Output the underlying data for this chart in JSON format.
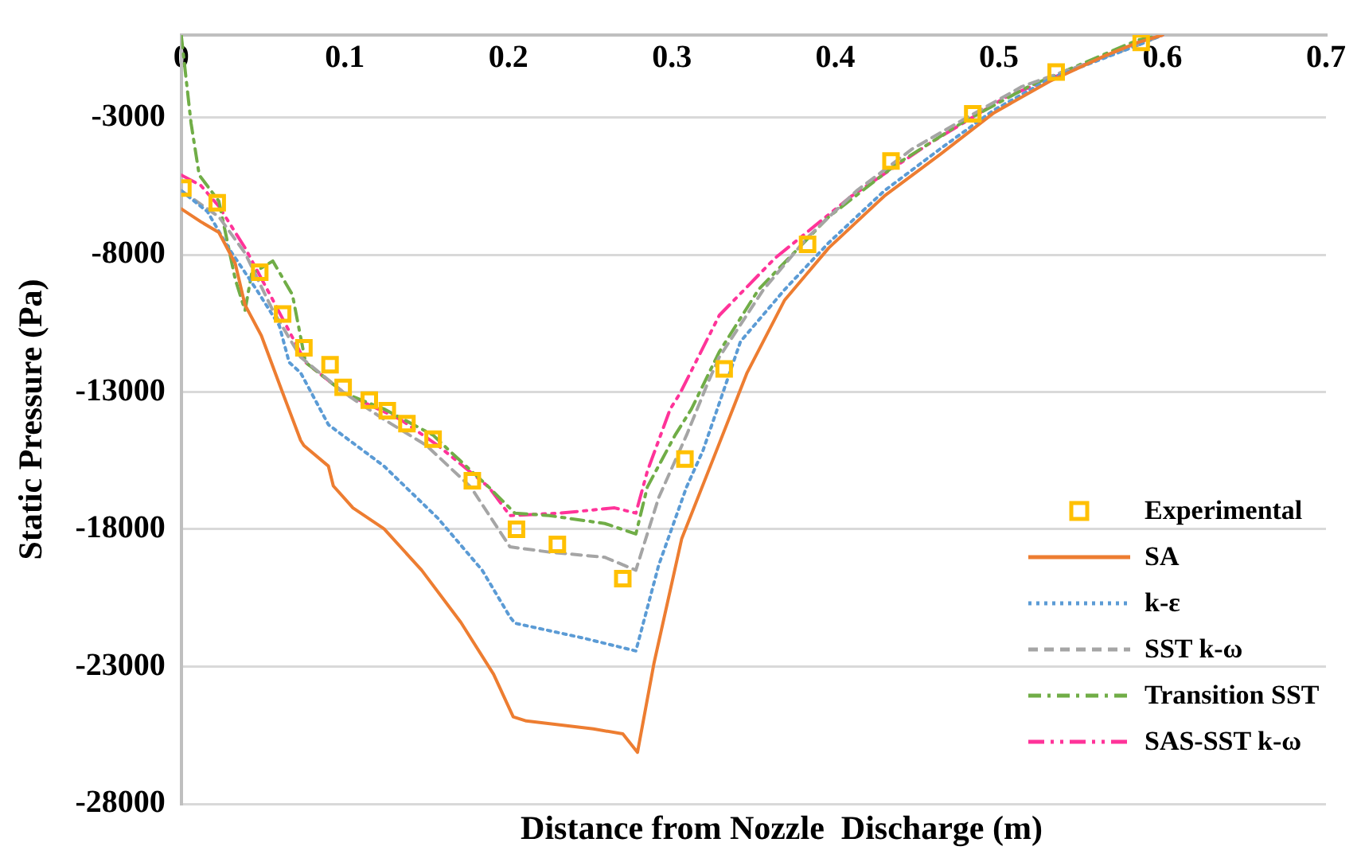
{
  "chart_data": {
    "type": "line",
    "xlabel": "Distance from Nozzle  Discharge (m)",
    "ylabel": "Static Pressure (Pa)",
    "xlim": [
      0,
      0.7
    ],
    "xticks": [
      0,
      0.1,
      0.2,
      0.3,
      0.4,
      0.5,
      0.6,
      0.7
    ],
    "ylim": [
      -28000,
      0
    ],
    "yticks": [
      -3000,
      -8000,
      -13000,
      -18000,
      -23000,
      -28000
    ],
    "grid": "y",
    "legend": "bottom right",
    "series": [
      {
        "name": "Experimental",
        "type": "scatter",
        "marker": "square",
        "color": "#ffc000",
        "x": [
          0.001,
          0.022,
          0.048,
          0.062,
          0.075,
          0.091,
          0.099,
          0.115,
          0.126,
          0.138,
          0.154,
          0.178,
          0.205,
          0.23,
          0.27,
          0.308,
          0.332,
          0.383,
          0.434,
          0.484,
          0.535,
          0.587
        ],
        "values": [
          -5570,
          -6110,
          -8640,
          -10160,
          -11390,
          -12010,
          -12830,
          -13300,
          -13680,
          -14150,
          -14720,
          -16230,
          -18000,
          -18550,
          -19800,
          -15440,
          -12160,
          -7620,
          -4590,
          -2870,
          -1350,
          -270
        ]
      },
      {
        "name": "SA",
        "type": "line",
        "marker": "none",
        "line_style": "solid",
        "color": "#ed7d31",
        "x": [
          0,
          0.012,
          0.023,
          0.033,
          0.039,
          0.049,
          0.061,
          0.073,
          0.075,
          0.09,
          0.093,
          0.105,
          0.124,
          0.147,
          0.171,
          0.191,
          0.203,
          0.211,
          0.252,
          0.27,
          0.279,
          0.289,
          0.306,
          0.326,
          0.346,
          0.369,
          0.396,
          0.43,
          0.464,
          0.497,
          0.531,
          0.565,
          0.585,
          0.6
        ],
        "values": [
          -6330,
          -6800,
          -7190,
          -8320,
          -9830,
          -10950,
          -12870,
          -14760,
          -14950,
          -15700,
          -16420,
          -17220,
          -17980,
          -19490,
          -21390,
          -23280,
          -24830,
          -24980,
          -25270,
          -25450,
          -26120,
          -22900,
          -18350,
          -15330,
          -12300,
          -9650,
          -7750,
          -5860,
          -4350,
          -2830,
          -1690,
          -750,
          -270,
          0
        ]
      },
      {
        "name": "k-ε",
        "type": "line",
        "marker": "none",
        "line_style": "dotted",
        "color": "#5b9bd5",
        "x": [
          0,
          0.016,
          0.029,
          0.046,
          0.06,
          0.066,
          0.073,
          0.09,
          0.124,
          0.157,
          0.184,
          0.201,
          0.204,
          0.245,
          0.278,
          0.292,
          0.309,
          0.319,
          0.342,
          0.369,
          0.396,
          0.43,
          0.464,
          0.497,
          0.531,
          0.585,
          0.6
        ],
        "values": [
          -5670,
          -6430,
          -7760,
          -9270,
          -10590,
          -11920,
          -12300,
          -14190,
          -15700,
          -17600,
          -19490,
          -21190,
          -21420,
          -21950,
          -22430,
          -19300,
          -16460,
          -15140,
          -11160,
          -9270,
          -7560,
          -5670,
          -4150,
          -2730,
          -1600,
          -370,
          0
        ]
      },
      {
        "name": "SST k-ω",
        "type": "line",
        "marker": "none",
        "line_style": "dashed",
        "color": "#a5a5a5",
        "x": [
          0,
          0.023,
          0.039,
          0.056,
          0.073,
          0.1,
          0.124,
          0.15,
          0.177,
          0.201,
          0.225,
          0.259,
          0.278,
          0.292,
          0.309,
          0.322,
          0.329,
          0.356,
          0.383,
          0.413,
          0.447,
          0.48,
          0.514,
          0.585,
          0.6
        ],
        "values": [
          -5670,
          -6620,
          -7940,
          -10030,
          -11730,
          -13050,
          -14000,
          -14950,
          -16460,
          -18640,
          -18830,
          -19020,
          -19490,
          -16840,
          -14570,
          -12670,
          -11730,
          -9270,
          -7370,
          -5670,
          -4150,
          -3020,
          -1880,
          -370,
          0
        ]
      },
      {
        "name": "Transition SST",
        "type": "line",
        "marker": "none",
        "line_style": "dashdot",
        "color": "#70ad47",
        "x": [
          0,
          0.006,
          0.011,
          0.023,
          0.033,
          0.039,
          0.043,
          0.056,
          0.068,
          0.076,
          0.1,
          0.124,
          0.154,
          0.164,
          0.188,
          0.204,
          0.225,
          0.259,
          0.278,
          0.285,
          0.302,
          0.312,
          0.329,
          0.353,
          0.396,
          0.437,
          0.477,
          0.518,
          0.585,
          0.6
        ],
        "values": [
          0,
          -3210,
          -5100,
          -6050,
          -8890,
          -10030,
          -8700,
          -8230,
          -9460,
          -11920,
          -13050,
          -13620,
          -14570,
          -15140,
          -16460,
          -17410,
          -17500,
          -17790,
          -18170,
          -16460,
          -14570,
          -13620,
          -11540,
          -9270,
          -6620,
          -4720,
          -3210,
          -1880,
          -180,
          0
        ]
      },
      {
        "name": "SAS-SST k-ω",
        "type": "line",
        "marker": "none",
        "line_style": "dashdotdot",
        "color": "#ff3399",
        "x": [
          0,
          0.012,
          0.023,
          0.039,
          0.056,
          0.076,
          0.1,
          0.134,
          0.157,
          0.188,
          0.201,
          0.232,
          0.265,
          0.278,
          0.285,
          0.299,
          0.305,
          0.329,
          0.363,
          0.41,
          0.457,
          0.504,
          0.585,
          0.6
        ],
        "values": [
          -5100,
          -5480,
          -6240,
          -7750,
          -9650,
          -11920,
          -13050,
          -14000,
          -14950,
          -16460,
          -17500,
          -17410,
          -17220,
          -17410,
          -15890,
          -13620,
          -13050,
          -10210,
          -8130,
          -5860,
          -3970,
          -2270,
          -270,
          0
        ]
      }
    ]
  }
}
